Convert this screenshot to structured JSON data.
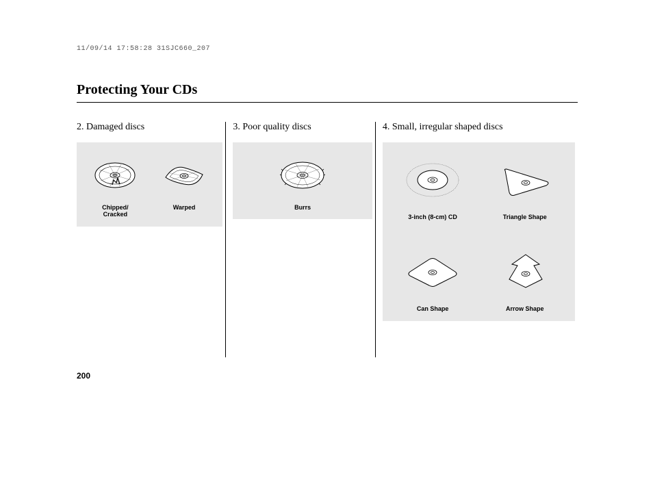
{
  "header_stamp": "11/09/14 17:58:28 31SJC660_207",
  "page_title": "Protecting Your CDs",
  "page_number": "200",
  "columns": {
    "col1": {
      "title": "2. Damaged discs",
      "items": [
        {
          "caption": "Chipped/\nCracked"
        },
        {
          "caption": "Warped"
        }
      ]
    },
    "col2": {
      "title": "3. Poor quality discs",
      "items": [
        {
          "caption": "Burrs"
        }
      ]
    },
    "col3": {
      "title": "4. Small, irregular shaped discs",
      "row1": [
        {
          "caption": "3-inch (8-cm) CD"
        },
        {
          "caption": "Triangle Shape"
        }
      ],
      "row2": [
        {
          "caption": "Can Shape"
        },
        {
          "caption": "Arrow Shape"
        }
      ]
    }
  },
  "colors": {
    "panel_bg": "#e7e7e7",
    "stroke": "#000000",
    "fill": "#ffffff"
  }
}
